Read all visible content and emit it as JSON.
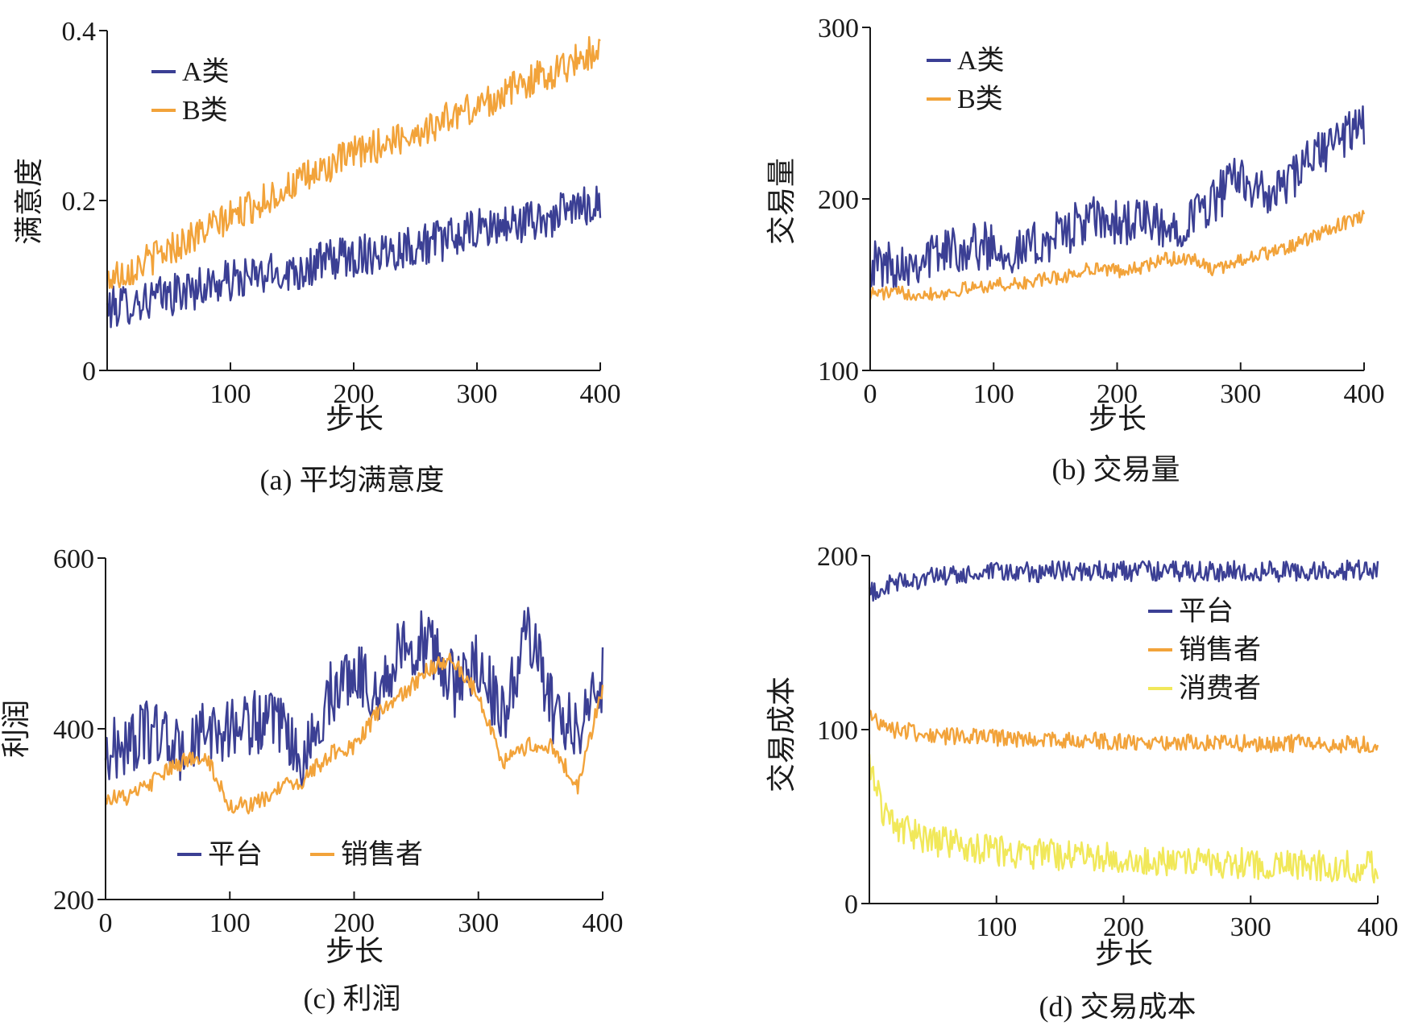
{
  "colors": {
    "axis": "#1a1a1a",
    "navy": "#3b3f94",
    "orange": "#f2a33a",
    "yellow": "#f1e85a"
  },
  "chart_data": [
    {
      "id": "a",
      "type": "line",
      "caption": "(a) 平均满意度",
      "xlabel": "步长",
      "ylabel": "满意度",
      "xlim": [
        0,
        400
      ],
      "ylim": [
        0,
        0.4
      ],
      "x_ticks": [
        100,
        200,
        300,
        400
      ],
      "x_tick_labels": [
        "100",
        "200",
        "300",
        "400"
      ],
      "y_ticks": [
        0,
        0.2,
        0.4
      ],
      "y_tick_labels": [
        "0",
        "0.2",
        "0.4"
      ],
      "legend_position": "top-left",
      "series": [
        {
          "name": "A类",
          "color": "#3b3f94",
          "x": [
            0,
            20,
            40,
            60,
            80,
            100,
            120,
            140,
            160,
            180,
            200,
            220,
            240,
            260,
            280,
            300,
            320,
            340,
            360,
            380,
            400
          ],
          "y": [
            0.072,
            0.08,
            0.085,
            0.092,
            0.1,
            0.105,
            0.11,
            0.115,
            0.12,
            0.13,
            0.135,
            0.14,
            0.145,
            0.15,
            0.155,
            0.165,
            0.17,
            0.175,
            0.18,
            0.19,
            0.2
          ],
          "noise": 0.025
        },
        {
          "name": "B类",
          "color": "#f2a33a",
          "x": [
            0,
            20,
            40,
            60,
            80,
            100,
            120,
            140,
            160,
            180,
            200,
            220,
            240,
            260,
            280,
            300,
            320,
            340,
            360,
            380,
            400
          ],
          "y": [
            0.108,
            0.12,
            0.135,
            0.15,
            0.165,
            0.18,
            0.195,
            0.21,
            0.225,
            0.24,
            0.255,
            0.265,
            0.275,
            0.285,
            0.3,
            0.31,
            0.325,
            0.34,
            0.35,
            0.365,
            0.38
          ],
          "noise": 0.02
        }
      ]
    },
    {
      "id": "b",
      "type": "line",
      "caption": "(b) 交易量",
      "xlabel": "步长",
      "ylabel": "交易量",
      "xlim": [
        0,
        400
      ],
      "ylim": [
        100,
        300
      ],
      "x_ticks": [
        0,
        100,
        200,
        300,
        400
      ],
      "x_tick_labels": [
        "0",
        "100",
        "200",
        "300",
        "400"
      ],
      "y_ticks": [
        100,
        200,
        300
      ],
      "y_tick_labels": [
        "100",
        "200",
        "300"
      ],
      "legend_position": "top-left",
      "series": [
        {
          "name": "A类",
          "color": "#3b3f94",
          "x": [
            0,
            20,
            40,
            60,
            80,
            100,
            120,
            140,
            160,
            180,
            200,
            220,
            240,
            260,
            280,
            300,
            320,
            340,
            360,
            380,
            400
          ],
          "y": [
            162,
            162,
            165,
            170,
            172,
            173,
            168,
            175,
            182,
            188,
            185,
            188,
            180,
            190,
            200,
            215,
            200,
            210,
            225,
            235,
            245
          ],
          "noise": 14
        },
        {
          "name": "B类",
          "color": "#f2a33a",
          "x": [
            0,
            20,
            40,
            60,
            80,
            100,
            120,
            140,
            160,
            180,
            200,
            220,
            240,
            260,
            280,
            300,
            320,
            340,
            360,
            380,
            400
          ],
          "y": [
            145,
            145,
            145,
            145,
            148,
            150,
            150,
            153,
            155,
            160,
            158,
            160,
            165,
            165,
            158,
            165,
            168,
            172,
            178,
            185,
            190
          ],
          "noise": 4
        }
      ]
    },
    {
      "id": "c",
      "type": "line",
      "caption": "(c) 利润",
      "xlabel": "步长",
      "ylabel": "利润",
      "xlim": [
        0,
        400
      ],
      "ylim": [
        200,
        600
      ],
      "x_ticks": [
        0,
        100,
        200,
        300,
        400
      ],
      "x_tick_labels": [
        "0",
        "100",
        "200",
        "300",
        "400"
      ],
      "y_ticks": [
        200,
        400,
        600
      ],
      "y_tick_labels": [
        "200",
        "400",
        "600"
      ],
      "legend_position": "bottom-center",
      "series": [
        {
          "name": "平台",
          "color": "#3b3f94",
          "x": [
            0,
            20,
            40,
            60,
            80,
            100,
            120,
            140,
            160,
            180,
            200,
            220,
            240,
            260,
            280,
            300,
            320,
            340,
            360,
            380,
            400
          ],
          "y": [
            370,
            385,
            400,
            370,
            395,
            400,
            410,
            400,
            360,
            440,
            470,
            440,
            500,
            500,
            450,
            480,
            410,
            520,
            420,
            400,
            460
          ],
          "noise": 38
        },
        {
          "name": "销售者",
          "color": "#f2a33a",
          "x": [
            0,
            20,
            40,
            60,
            80,
            100,
            120,
            140,
            160,
            180,
            200,
            220,
            240,
            260,
            280,
            300,
            320,
            340,
            360,
            380,
            400
          ],
          "y": [
            320,
            320,
            340,
            360,
            370,
            310,
            310,
            330,
            340,
            370,
            380,
            420,
            440,
            470,
            480,
            440,
            360,
            380,
            380,
            330,
            450
          ],
          "noise": 10
        }
      ]
    },
    {
      "id": "d",
      "type": "line",
      "caption": "(d) 交易成本",
      "xlabel": "步长",
      "ylabel": "交易成本",
      "xlim": [
        0,
        400
      ],
      "ylim": [
        0,
        200
      ],
      "x_ticks": [
        100,
        200,
        300,
        400
      ],
      "x_tick_labels": [
        "100",
        "200",
        "300",
        "400"
      ],
      "y_ticks": [
        0,
        100,
        200
      ],
      "y_tick_labels": [
        "0",
        "100",
        "200"
      ],
      "legend_position": "top-right",
      "series": [
        {
          "name": "平台",
          "color": "#3b3f94",
          "x": [
            0,
            20,
            40,
            60,
            80,
            100,
            150,
            200,
            250,
            300,
            350,
            400
          ],
          "y": [
            178,
            184,
            187,
            188,
            189,
            190,
            191,
            191,
            191,
            191,
            191,
            192
          ],
          "noise": 6
        },
        {
          "name": "销售者",
          "color": "#f2a33a",
          "x": [
            0,
            20,
            40,
            60,
            80,
            100,
            150,
            200,
            250,
            300,
            350,
            400
          ],
          "y": [
            108,
            100,
            98,
            96,
            96,
            95,
            94,
            93,
            93,
            92,
            92,
            91
          ],
          "noise": 5
        },
        {
          "name": "消费者",
          "color": "#f1e85a",
          "x": [
            0,
            10,
            20,
            40,
            60,
            80,
            100,
            150,
            200,
            250,
            300,
            350,
            400
          ],
          "y": [
            80,
            55,
            45,
            38,
            35,
            32,
            30,
            28,
            26,
            24,
            23,
            22,
            21
          ],
          "noise": 9
        }
      ]
    }
  ]
}
